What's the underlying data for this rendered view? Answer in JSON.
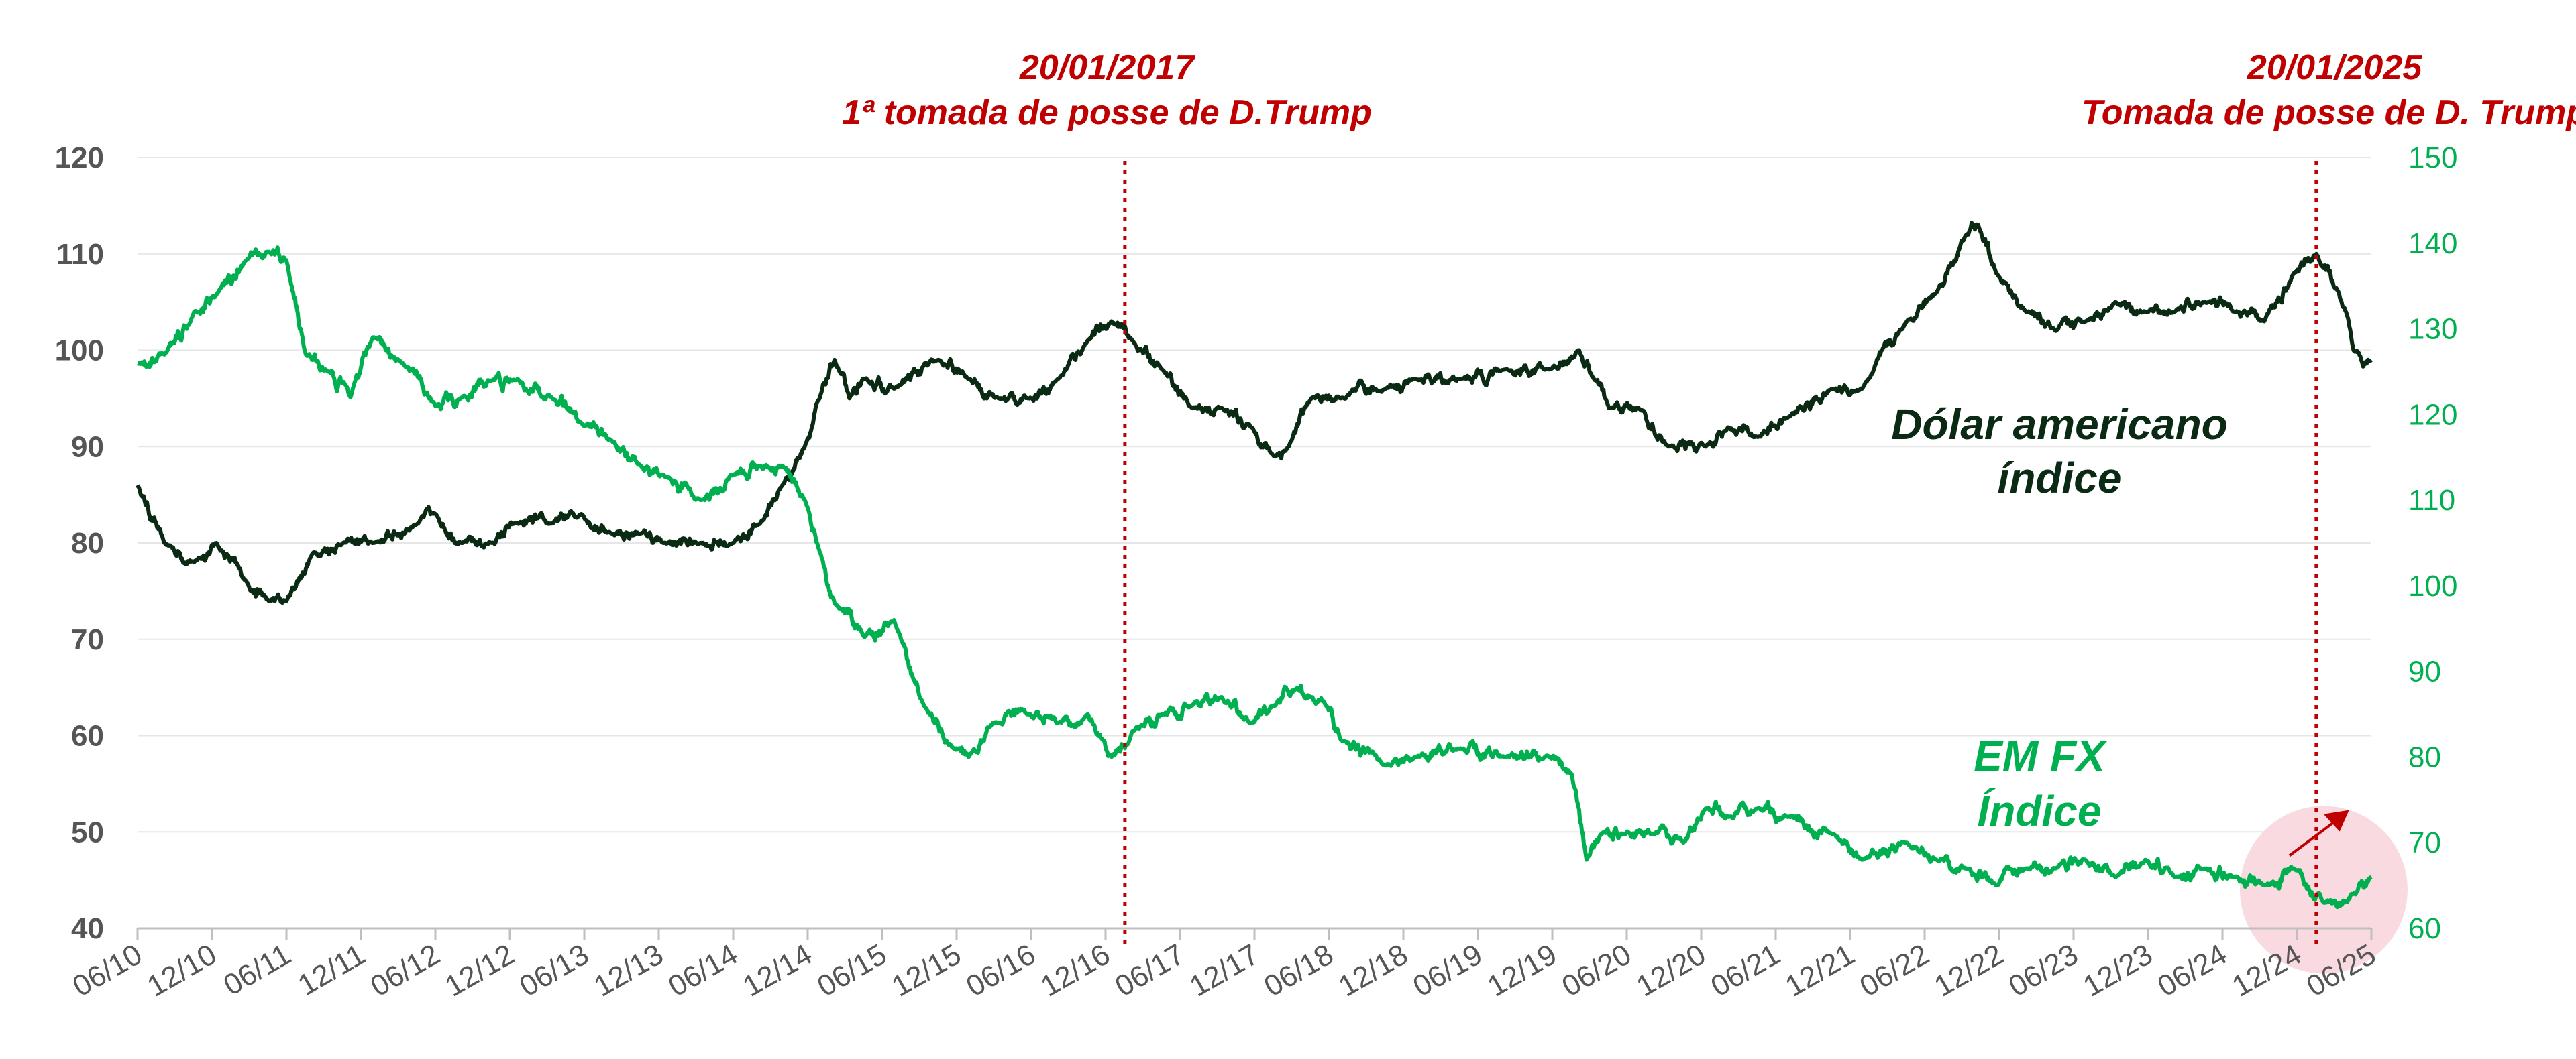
{
  "chart_data": {
    "type": "line",
    "title": "",
    "xlabel": "",
    "ylabel": "",
    "x_ticks": [
      "06/10",
      "12/10",
      "06/11",
      "12/11",
      "06/12",
      "12/12",
      "06/13",
      "12/13",
      "06/14",
      "12/14",
      "06/15",
      "12/15",
      "06/16",
      "12/16",
      "06/17",
      "12/17",
      "06/18",
      "12/18",
      "06/19",
      "12/19",
      "06/20",
      "12/20",
      "06/21",
      "12/21",
      "06/22",
      "12/22",
      "06/23",
      "12/23",
      "06/24",
      "12/24",
      "06/25"
    ],
    "x_range": [
      2010.42,
      2025.42
    ],
    "y_left": {
      "range": [
        40,
        120
      ],
      "ticks": [
        "40",
        "50",
        "60",
        "70",
        "80",
        "90",
        "100",
        "110",
        "120"
      ]
    },
    "y_right": {
      "range": [
        60,
        150
      ],
      "ticks": [
        "60",
        "70",
        "80",
        "90",
        "100",
        "110",
        "120",
        "130",
        "140",
        "150"
      ]
    },
    "series": [
      {
        "name": "Dólar americano índice",
        "axis": "left",
        "color": "#0b2a14",
        "x": [
          2010.42,
          2010.6,
          2010.8,
          2010.95,
          2011.15,
          2011.3,
          2011.42,
          2011.6,
          2011.8,
          2012.0,
          2012.3,
          2012.42,
          2012.6,
          2012.8,
          2012.95,
          2013.2,
          2013.4,
          2013.6,
          2013.8,
          2013.95,
          2014.2,
          2014.42,
          2014.6,
          2014.75,
          2014.9,
          2015.0,
          2015.1,
          2015.2,
          2015.3,
          2015.5,
          2015.8,
          2016.0,
          2016.2,
          2016.4,
          2016.6,
          2016.8,
          2016.96,
          2017.1,
          2017.3,
          2017.5,
          2017.7,
          2017.9,
          2018.05,
          2018.15,
          2018.3,
          2018.5,
          2018.8,
          2019.0,
          2019.3,
          2019.6,
          2019.9,
          2020.1,
          2020.2,
          2020.3,
          2020.5,
          2020.7,
          2020.95,
          2021.1,
          2021.3,
          2021.5,
          2021.8,
          2022.0,
          2022.3,
          2022.5,
          2022.7,
          2022.78,
          2022.9,
          2023.1,
          2023.3,
          2023.5,
          2023.7,
          2023.9,
          2024.1,
          2024.3,
          2024.5,
          2024.7,
          2024.9,
          2025.05,
          2025.2,
          2025.3,
          2025.42
        ],
        "values": [
          86,
          80,
          78,
          80,
          76,
          74,
          74,
          79,
          80,
          80,
          82,
          83,
          80,
          80,
          82,
          82,
          83,
          81,
          81,
          80,
          80,
          80,
          82,
          86,
          90,
          95,
          99,
          95,
          97,
          96,
          99,
          97,
          95,
          95,
          97,
          101,
          103,
          101,
          98,
          94,
          94,
          92,
          89,
          90,
          95,
          95,
          96,
          97,
          97,
          98,
          98,
          100,
          97,
          94,
          94,
          90,
          90,
          92,
          91,
          93,
          96,
          96,
          103,
          106,
          112,
          113,
          108,
          104,
          102,
          103,
          105,
          104,
          104,
          105,
          104,
          103,
          108,
          110,
          106,
          100,
          99
        ]
      },
      {
        "name": "EM FX Índice",
        "axis": "right",
        "color": "#00b050",
        "x": [
          2010.42,
          2010.6,
          2010.8,
          2010.95,
          2011.15,
          2011.3,
          2011.42,
          2011.55,
          2011.7,
          2011.85,
          2012.0,
          2012.2,
          2012.42,
          2012.6,
          2012.8,
          2012.95,
          2013.2,
          2013.4,
          2013.6,
          2013.8,
          2013.95,
          2014.2,
          2014.42,
          2014.6,
          2014.75,
          2014.9,
          2015.0,
          2015.1,
          2015.3,
          2015.5,
          2015.7,
          2015.9,
          2016.0,
          2016.2,
          2016.4,
          2016.6,
          2016.8,
          2016.9,
          2016.96,
          2017.1,
          2017.3,
          2017.5,
          2017.7,
          2017.9,
          2018.05,
          2018.2,
          2018.3,
          2018.4,
          2018.5,
          2018.8,
          2019.0,
          2019.3,
          2019.6,
          2019.9,
          2020.05,
          2020.15,
          2020.25,
          2020.4,
          2020.6,
          2020.8,
          2020.95,
          2021.1,
          2021.3,
          2021.5,
          2021.8,
          2022.0,
          2022.3,
          2022.5,
          2022.7,
          2022.9,
          2023.1,
          2023.3,
          2023.5,
          2023.7,
          2023.9,
          2024.1,
          2024.3,
          2024.5,
          2024.7,
          2024.9,
          2025.1,
          2025.3,
          2025.42
        ],
        "values": [
          126,
          127,
          132,
          134,
          138,
          139,
          138,
          127,
          125,
          122,
          129,
          126,
          121,
          122,
          124,
          124,
          122,
          119,
          117,
          114,
          113,
          110,
          113,
          114,
          114,
          110,
          104,
          98,
          94,
          96,
          86,
          81,
          80,
          84,
          85,
          84,
          85,
          82,
          80,
          83,
          85,
          86,
          87,
          84,
          86,
          88,
          87,
          86,
          82,
          79,
          80,
          81,
          80,
          80,
          78,
          68,
          71,
          71,
          71,
          70,
          74,
          73,
          74,
          73,
          71,
          68,
          70,
          68,
          67,
          65,
          67,
          67,
          68,
          66,
          68,
          66,
          67,
          66,
          65,
          67,
          63,
          64,
          66
        ]
      }
    ],
    "annotations": [
      {
        "date": "20/01/2017",
        "text": "1ª tomada de posse de D.Trump",
        "x": 2017.05
      },
      {
        "date": "20/01/2025",
        "text": "Tomada de posse de D. Trump",
        "x": 2025.05
      }
    ],
    "series_labels": {
      "usd": [
        "Dólar americano",
        "índice"
      ],
      "emfx": [
        "EM FX",
        "Índice"
      ]
    },
    "colors": {
      "usd": "#0b2a14",
      "emfx": "#00b050",
      "event": "#c00000",
      "highlight": "#f8d3dc",
      "grid": "#e6e6e6"
    },
    "grid": true,
    "legend": "inline"
  }
}
